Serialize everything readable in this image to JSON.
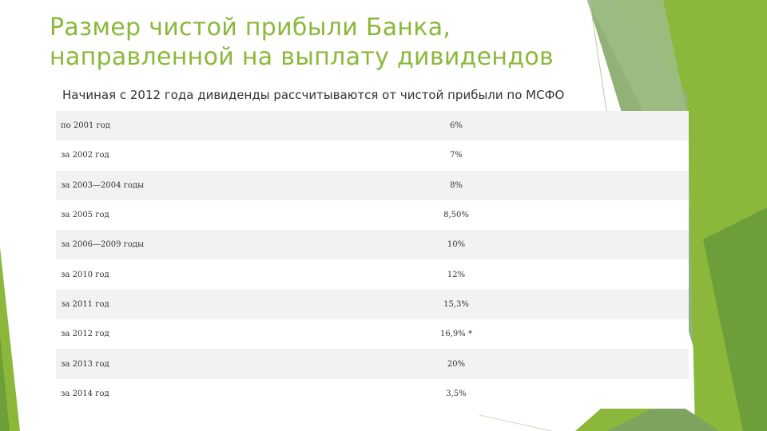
{
  "title": {
    "line1": "Размер чистой прибыли Банка,",
    "line2": "направленной на выплату дивидендов"
  },
  "subtitle": "Начиная с 2012 года дивиденды рассчитываются от чистой прибыли по МСФО",
  "table": {
    "rows": [
      {
        "period": "по 2001 год",
        "rate": "6%"
      },
      {
        "period": "за 2002 год",
        "rate": "7%"
      },
      {
        "period": "за 2003—2004 годы",
        "rate": "8%"
      },
      {
        "period": "за 2005 год",
        "rate": "8,50%"
      },
      {
        "period": "за 2006—2009 годы",
        "rate": "10%"
      },
      {
        "period": "за 2010 год",
        "rate": "12%"
      },
      {
        "period": "за 2011 год",
        "rate": "15,3%"
      },
      {
        "period": "за 2012 год",
        "rate": "16,9% *"
      },
      {
        "period": "за 2013 год",
        "rate": "20%"
      },
      {
        "period": "за 2014 год",
        "rate": "3,5%"
      }
    ]
  },
  "colors": {
    "accent": "#8BB83A",
    "accent_dark": "#6E9E3A",
    "accent_muted": "#8FAE78"
  }
}
